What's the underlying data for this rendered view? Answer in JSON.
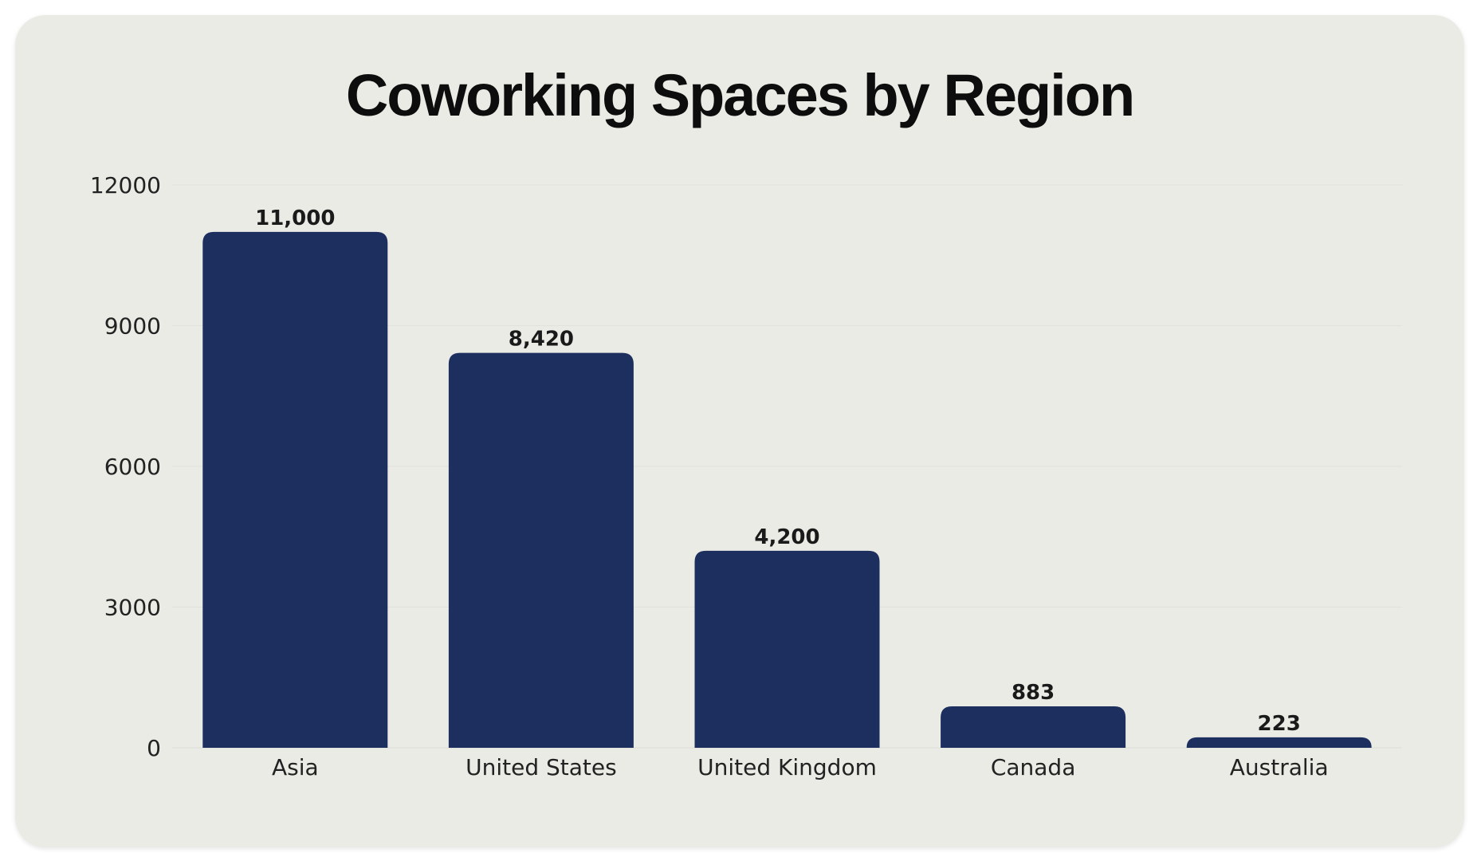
{
  "chart_data": {
    "type": "bar",
    "title": "Coworking Spaces by Region",
    "categories": [
      "Asia",
      "United States",
      "United Kingdom",
      "Canada",
      "Australia"
    ],
    "values": [
      11000,
      8420,
      4200,
      883,
      223
    ],
    "value_labels": [
      "11,000",
      "8,420",
      "4,200",
      "883",
      "223"
    ],
    "y_ticks": [
      0,
      3000,
      6000,
      9000,
      12000
    ],
    "ylim": [
      0,
      12000
    ],
    "xlabel": "",
    "ylabel": "",
    "grid": true,
    "bar_color": "#1d2f5e"
  }
}
